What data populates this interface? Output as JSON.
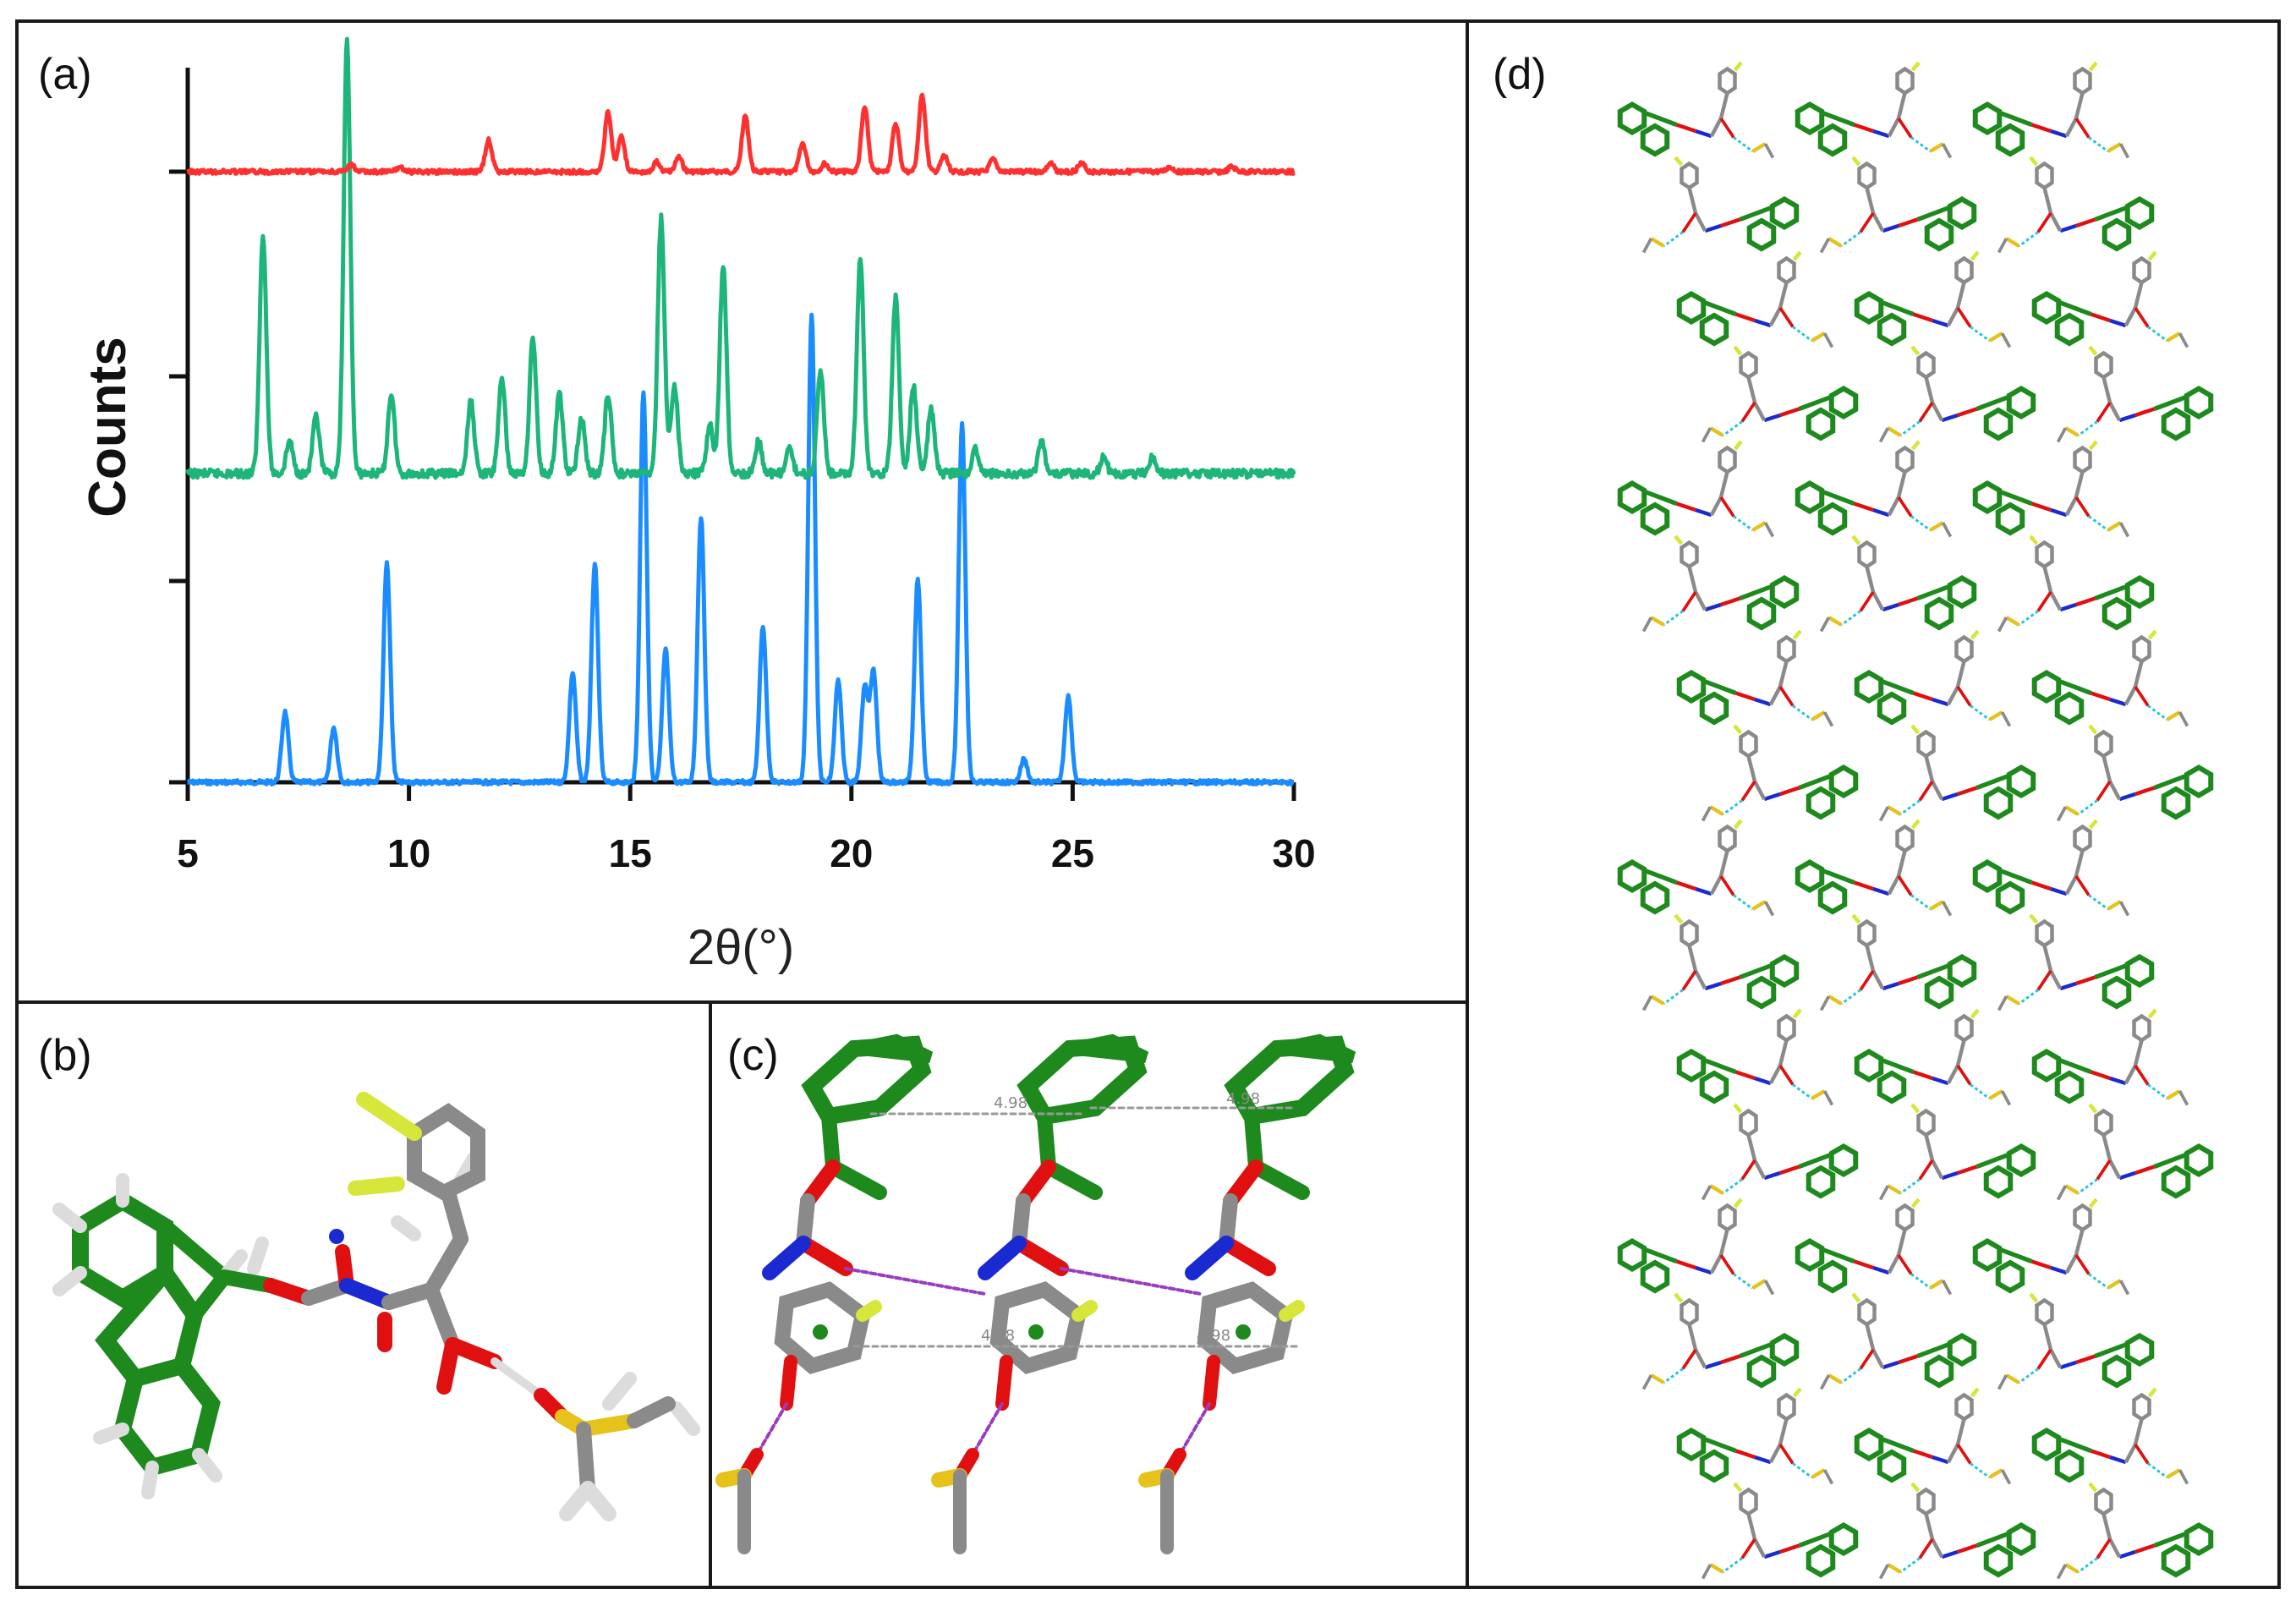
{
  "figure": {
    "panels": [
      {
        "id": "a",
        "label": "(a)"
      },
      {
        "id": "b",
        "label": "(b)"
      },
      {
        "id": "c",
        "label": "(c)"
      },
      {
        "id": "d",
        "label": "(d)"
      }
    ],
    "colors": {
      "frame": "#1a1a1a",
      "fmoc": "#1e8a1e",
      "carbon": "#8a8a8a",
      "oxygen": "#e01010",
      "nitrogen": "#1a2ad0",
      "sulfur": "#e6c21a",
      "fluorine": "#d6e63a",
      "hydrogen": "#dcdcdc",
      "hbond": "#9a3cc0"
    },
    "panel_c_distance_labels": [
      "4.98",
      "4.98",
      "4.98",
      "4.98"
    ]
  },
  "chart_data": {
    "type": "line",
    "title": "",
    "xlabel": "2θ(°)",
    "ylabel": "Counts",
    "xlim": [
      5,
      30
    ],
    "xticks": [
      5,
      10,
      15,
      20,
      25,
      30
    ],
    "grid": false,
    "legend": "none",
    "series": [
      {
        "color": "#1a8cff",
        "offset": 0,
        "baseline": 0,
        "peaks": [
          [
            7.2,
            45
          ],
          [
            8.3,
            35
          ],
          [
            9.5,
            140
          ],
          [
            13.7,
            70
          ],
          [
            14.2,
            140
          ],
          [
            15.3,
            250
          ],
          [
            15.8,
            85
          ],
          [
            16.6,
            170
          ],
          [
            18.0,
            100
          ],
          [
            19.1,
            300
          ],
          [
            19.7,
            65
          ],
          [
            20.3,
            60
          ],
          [
            20.5,
            70
          ],
          [
            21.5,
            130
          ],
          [
            22.5,
            230
          ],
          [
            23.9,
            15
          ],
          [
            24.9,
            55
          ]
        ]
      },
      {
        "color": "#1db57a",
        "offset": 1,
        "baseline": 0,
        "peaks": [
          [
            6.7,
            150
          ],
          [
            7.3,
            20
          ],
          [
            7.9,
            35
          ],
          [
            8.6,
            270
          ],
          [
            9.6,
            50
          ],
          [
            11.4,
            45
          ],
          [
            12.1,
            60
          ],
          [
            12.8,
            85
          ],
          [
            13.4,
            50
          ],
          [
            13.9,
            35
          ],
          [
            14.5,
            50
          ],
          [
            15.7,
            160
          ],
          [
            16.0,
            55
          ],
          [
            16.8,
            30
          ],
          [
            17.1,
            130
          ],
          [
            17.9,
            20
          ],
          [
            18.6,
            15
          ],
          [
            19.3,
            65
          ],
          [
            20.2,
            135
          ],
          [
            21.0,
            110
          ],
          [
            21.4,
            55
          ],
          [
            21.8,
            40
          ],
          [
            22.8,
            15
          ],
          [
            24.3,
            20
          ],
          [
            25.7,
            10
          ],
          [
            26.8,
            10
          ]
        ]
      },
      {
        "color": "#ff3030",
        "offset": 2,
        "baseline": 0,
        "peaks": [
          [
            8.7,
            8
          ],
          [
            9.8,
            6
          ],
          [
            11.8,
            40
          ],
          [
            14.5,
            75
          ],
          [
            14.8,
            45
          ],
          [
            15.6,
            12
          ],
          [
            16.1,
            18
          ],
          [
            17.6,
            70
          ],
          [
            18.9,
            35
          ],
          [
            19.4,
            10
          ],
          [
            20.3,
            80
          ],
          [
            21.0,
            60
          ],
          [
            21.6,
            95
          ],
          [
            22.1,
            20
          ],
          [
            23.2,
            15
          ],
          [
            24.5,
            10
          ],
          [
            25.2,
            10
          ],
          [
            27.2,
            6
          ],
          [
            28.6,
            6
          ]
        ]
      }
    ]
  }
}
